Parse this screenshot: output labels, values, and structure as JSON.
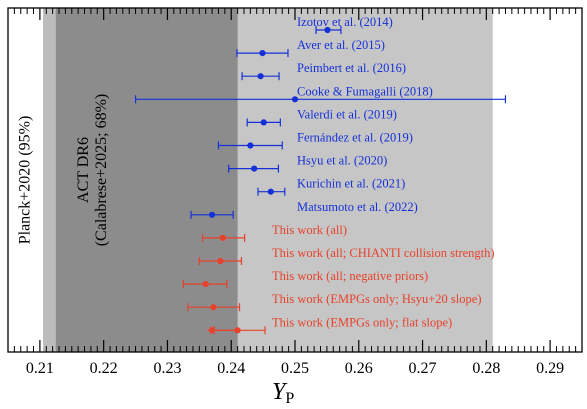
{
  "colors": {
    "band_outer": "#c6c6c6",
    "band_planck": "#bcbcbc",
    "band_act": "#8c8c8c",
    "literature": "#1530d8",
    "this_work": "#e8412b"
  },
  "chart_data": {
    "type": "scatter",
    "orientation": "horizontal-error-bars",
    "xlim": [
      0.205,
      0.295
    ],
    "xticks": [
      "0.21",
      "0.22",
      "0.23",
      "0.24",
      "0.25",
      "0.26",
      "0.27",
      "0.28",
      "0.29"
    ],
    "xlabel": "Y",
    "xlabel_sub": "P",
    "grid": false,
    "bands": [
      {
        "name": "Planck+2020 (95%)",
        "x": [
          0.2105,
          0.281
        ]
      },
      {
        "name": "ACT DR6 (Calabrese+2025; 68%)",
        "line1": "ACT DR6",
        "line2": "(Calabrese+2025; 68%)",
        "x": [
          0.2125,
          0.241
        ]
      }
    ],
    "points": [
      {
        "label": "Izotov et al. (2014)",
        "x": 0.2551,
        "lo": 0.2533,
        "hi": 0.2572,
        "group": "literature"
      },
      {
        "label": "Aver et al. (2015)",
        "x": 0.2449,
        "lo": 0.2409,
        "hi": 0.2489,
        "group": "literature"
      },
      {
        "label": "Peimbert et al. (2016)",
        "x": 0.2446,
        "lo": 0.2417,
        "hi": 0.2475,
        "group": "literature"
      },
      {
        "label": "Cooke & Fumagalli (2018)",
        "x": 0.25,
        "lo": 0.225,
        "hi": 0.283,
        "group": "literature"
      },
      {
        "label": "Valerdi et al. (2019)",
        "x": 0.2451,
        "lo": 0.2425,
        "hi": 0.2477,
        "group": "literature"
      },
      {
        "label": "Fernández et al. (2019)",
        "x": 0.243,
        "lo": 0.238,
        "hi": 0.248,
        "group": "literature"
      },
      {
        "label": "Hsyu et al. (2020)",
        "x": 0.2436,
        "lo": 0.2396,
        "hi": 0.2474,
        "group": "literature"
      },
      {
        "label": "Kurichin et al. (2021)",
        "x": 0.2462,
        "lo": 0.2442,
        "hi": 0.2484,
        "group": "literature"
      },
      {
        "label": "Matsumoto et al. (2022)",
        "x": 0.237,
        "lo": 0.2337,
        "hi": 0.2403,
        "group": "literature"
      },
      {
        "label": "This work (all)",
        "x": 0.2387,
        "lo": 0.2355,
        "hi": 0.2421,
        "group": "this_work"
      },
      {
        "label": "This work (all; CHIANTI collision strength)",
        "x": 0.2383,
        "lo": 0.235,
        "hi": 0.2416,
        "group": "this_work"
      },
      {
        "label": "This work (all; negative priors)",
        "x": 0.236,
        "lo": 0.2325,
        "hi": 0.2393,
        "group": "this_work"
      },
      {
        "label": "This work (EMPGs only; Hsyu+20 slope)",
        "x": 0.2372,
        "lo": 0.2332,
        "hi": 0.2413,
        "group": "this_work"
      },
      {
        "label": "This work (EMPGs only; flat slope)",
        "x": 0.241,
        "lo": 0.2368,
        "hi": 0.2453,
        "group": "this_work",
        "upper_limit": true
      }
    ]
  }
}
